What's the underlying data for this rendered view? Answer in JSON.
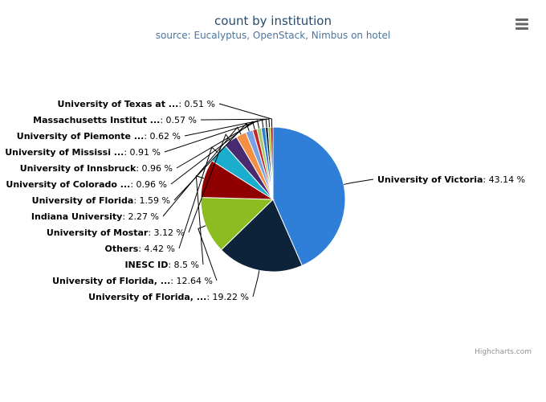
{
  "title": "count by institution",
  "subtitle": "source: Eucalyptus, OpenStack, Nimbus on hotel",
  "credits": "Highcharts.com",
  "menu_icon": "hamburger-menu-icon",
  "chart_data": {
    "type": "pie",
    "title": "count by institution",
    "subtitle": "source: Eucalyptus, OpenStack, Nimbus on hotel",
    "value_suffix": " %",
    "slices": [
      {
        "name": "University of Victoria",
        "value": 43.14,
        "label": "43.14 %",
        "color": "#2f7ed8"
      },
      {
        "name": "University of Florida, ...",
        "value": 19.22,
        "label": "19.22 %",
        "color": "#0d233a"
      },
      {
        "name": "University of Florida, ...",
        "value": 12.64,
        "label": "12.64 %",
        "color": "#8bbc21"
      },
      {
        "name": "INESC ID",
        "value": 8.5,
        "label": "8.5 %",
        "color": "#910000"
      },
      {
        "name": "Others",
        "value": 4.42,
        "label": "4.42 %",
        "color": "#1aadce"
      },
      {
        "name": "University of Mostar",
        "value": 3.12,
        "label": "3.12 %",
        "color": "#492970"
      },
      {
        "name": "Indiana University",
        "value": 2.27,
        "label": "2.27 %",
        "color": "#f28f43"
      },
      {
        "name": "University of Florida",
        "value": 1.59,
        "label": "1.59 %",
        "color": "#77a1e5"
      },
      {
        "name": "University of Colorado ...",
        "value": 0.96,
        "label": "0.96 %",
        "color": "#c42525"
      },
      {
        "name": "University of Innsbruck",
        "value": 0.96,
        "label": "0.96 %",
        "color": "#a6c96a"
      },
      {
        "name": "University of Mississi ...",
        "value": 0.91,
        "label": "0.91 %",
        "color": "#2f7ed8"
      },
      {
        "name": "University of Piemonte ...",
        "value": 0.62,
        "label": "0.62 %",
        "color": "#0d233a"
      },
      {
        "name": "Massachusetts Institut ...",
        "value": 0.57,
        "label": "0.57 %",
        "color": "#8bbc21"
      },
      {
        "name": "University of Texas at ...",
        "value": 0.51,
        "label": "0.51 %",
        "color": "#910000"
      }
    ]
  }
}
